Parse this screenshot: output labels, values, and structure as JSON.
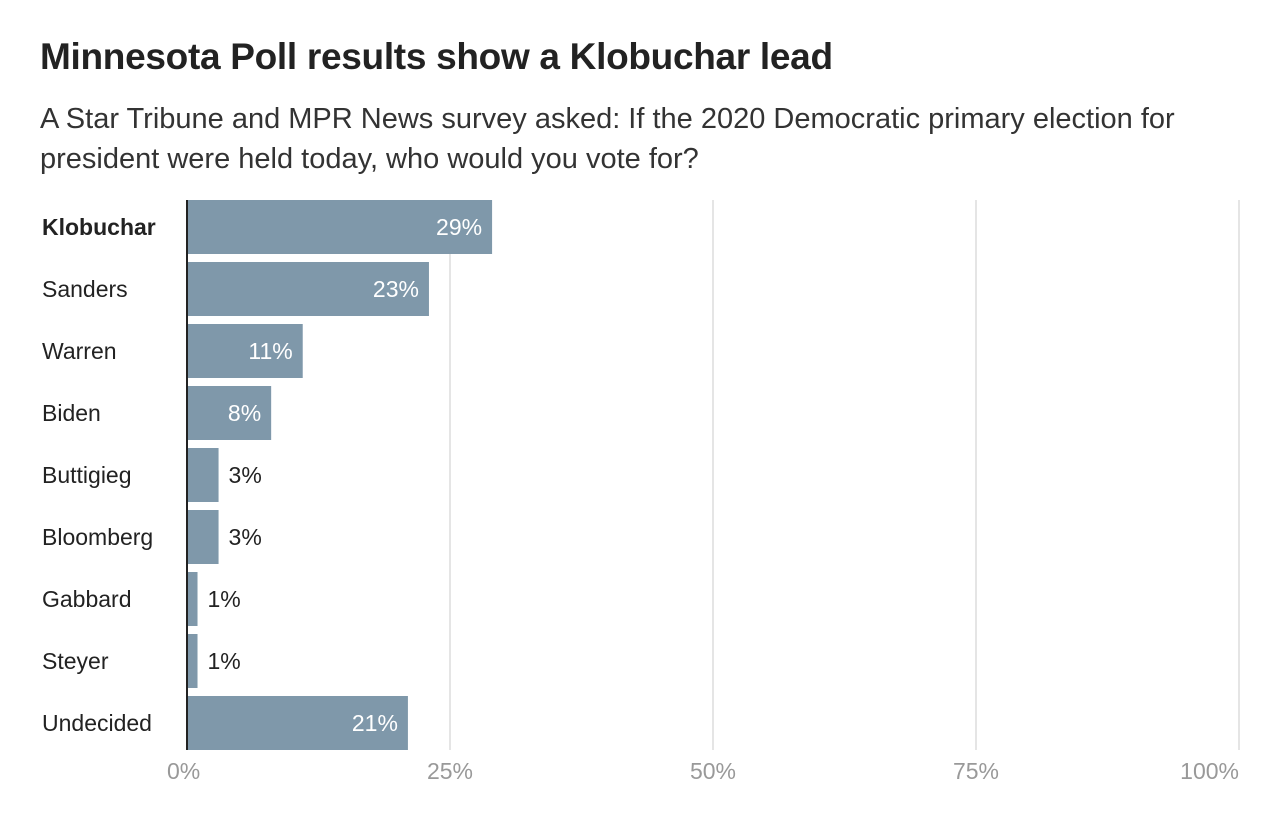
{
  "title": "Minnesota Poll results show a Klobuchar lead",
  "subtitle": "A Star Tribune and MPR News survey asked: If the 2020 Democratic primary election for president were held today, who would you vote for?",
  "chart_data": {
    "type": "bar",
    "orientation": "horizontal",
    "categories": [
      "Klobuchar",
      "Sanders",
      "Warren",
      "Biden",
      "Buttigieg",
      "Bloomberg",
      "Gabbard",
      "Steyer",
      "Undecided"
    ],
    "values": [
      29,
      23,
      11,
      8,
      3,
      3,
      1,
      1,
      21
    ],
    "value_labels": [
      "29%",
      "23%",
      "11%",
      "8%",
      "3%",
      "3%",
      "1%",
      "1%",
      "21%"
    ],
    "bold_categories": [
      "Klobuchar"
    ],
    "xlim": [
      0,
      100
    ],
    "xticks": [
      0,
      25,
      50,
      75,
      100
    ],
    "xtick_labels": [
      "0%",
      "25%",
      "50%",
      "75%",
      "100%"
    ],
    "grid": true,
    "colors": {
      "bar": "#7f98aa",
      "label_inside": "#ffffff",
      "label_outside": "#222222",
      "grid": "#e5e5e5",
      "axis": "#222222",
      "tick_label": "#999999"
    }
  }
}
